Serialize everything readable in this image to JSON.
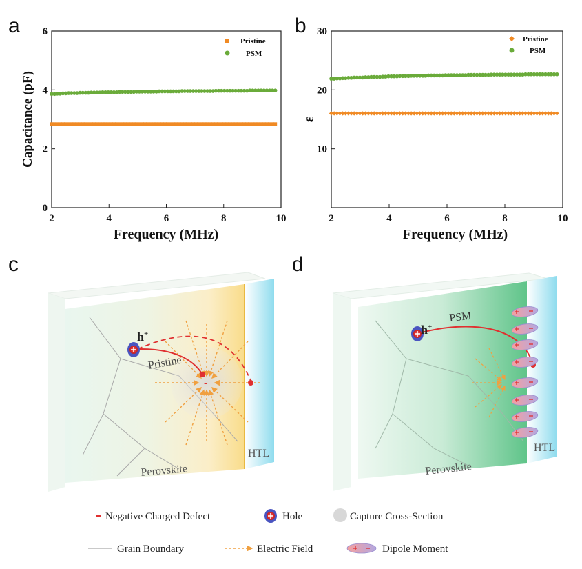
{
  "chart_data": [
    {
      "panel": "a",
      "type": "scatter",
      "xlabel": "Frequency (MHz)",
      "ylabel": "Capacitance (pF)",
      "xlim": [
        2,
        10
      ],
      "ylim": [
        0,
        6
      ],
      "xticks": [
        "2",
        "4",
        "6",
        "8",
        "10"
      ],
      "yticks": [
        "0",
        "2",
        "4",
        "6"
      ],
      "x": [
        2.0,
        2.2,
        2.4,
        2.6,
        2.8,
        3.0,
        3.2,
        3.4,
        3.6,
        3.8,
        4.0,
        4.2,
        4.4,
        4.6,
        4.8,
        5.0,
        5.2,
        5.4,
        5.6,
        5.8,
        6.0,
        6.2,
        6.4,
        6.6,
        6.8,
        7.0,
        7.2,
        7.4,
        7.6,
        7.8,
        8.0,
        8.2,
        8.4,
        8.6,
        8.8,
        9.0,
        9.2,
        9.4,
        9.6,
        9.8
      ],
      "legend_position": "top-right",
      "series": [
        {
          "name": "Pristine",
          "marker": "square",
          "color": "#f08a24",
          "values": [
            2.84,
            2.84,
            2.84,
            2.84,
            2.84,
            2.84,
            2.84,
            2.84,
            2.84,
            2.84,
            2.84,
            2.84,
            2.84,
            2.84,
            2.84,
            2.84,
            2.84,
            2.84,
            2.84,
            2.84,
            2.84,
            2.84,
            2.84,
            2.84,
            2.84,
            2.84,
            2.84,
            2.84,
            2.84,
            2.84,
            2.84,
            2.84,
            2.84,
            2.84,
            2.84,
            2.84,
            2.84,
            2.84,
            2.84,
            2.84
          ]
        },
        {
          "name": "PSM",
          "marker": "circle",
          "color": "#6aab3a",
          "values": [
            3.86,
            3.87,
            3.88,
            3.89,
            3.89,
            3.9,
            3.9,
            3.91,
            3.91,
            3.92,
            3.92,
            3.92,
            3.93,
            3.93,
            3.93,
            3.94,
            3.94,
            3.94,
            3.94,
            3.95,
            3.95,
            3.95,
            3.95,
            3.96,
            3.96,
            3.96,
            3.96,
            3.96,
            3.96,
            3.97,
            3.97,
            3.97,
            3.97,
            3.97,
            3.97,
            3.98,
            3.98,
            3.98,
            3.98,
            3.98
          ]
        }
      ]
    },
    {
      "panel": "b",
      "type": "scatter",
      "xlabel": "Frequency (MHz)",
      "ylabel": "ε",
      "xlim": [
        2,
        10
      ],
      "ylim": [
        0,
        30
      ],
      "xticks": [
        "2",
        "4",
        "6",
        "8",
        "10"
      ],
      "yticks": [
        "10",
        "20",
        "30"
      ],
      "x": [
        2.0,
        2.2,
        2.4,
        2.6,
        2.8,
        3.0,
        3.2,
        3.4,
        3.6,
        3.8,
        4.0,
        4.2,
        4.4,
        4.6,
        4.8,
        5.0,
        5.2,
        5.4,
        5.6,
        5.8,
        6.0,
        6.2,
        6.4,
        6.6,
        6.8,
        7.0,
        7.2,
        7.4,
        7.6,
        7.8,
        8.0,
        8.2,
        8.4,
        8.6,
        8.8,
        9.0,
        9.2,
        9.4,
        9.6,
        9.8
      ],
      "legend_position": "top-right",
      "series": [
        {
          "name": "Pristine",
          "marker": "diamond",
          "color": "#f08a24",
          "values": [
            16.0,
            16.0,
            16.0,
            16.0,
            16.0,
            16.0,
            16.0,
            16.0,
            16.0,
            16.0,
            16.0,
            16.0,
            16.0,
            16.0,
            16.0,
            16.0,
            16.0,
            16.0,
            16.0,
            16.0,
            16.0,
            16.0,
            16.0,
            16.0,
            16.0,
            16.0,
            16.0,
            16.0,
            16.0,
            16.0,
            16.0,
            16.0,
            16.0,
            16.0,
            16.0,
            16.0,
            16.0,
            16.0,
            16.0,
            16.0
          ]
        },
        {
          "name": "PSM",
          "marker": "circle",
          "color": "#6aab3a",
          "values": [
            21.9,
            21.95,
            22.0,
            22.05,
            22.1,
            22.1,
            22.15,
            22.2,
            22.2,
            22.25,
            22.3,
            22.3,
            22.35,
            22.35,
            22.4,
            22.4,
            22.4,
            22.45,
            22.45,
            22.45,
            22.5,
            22.5,
            22.5,
            22.5,
            22.55,
            22.55,
            22.55,
            22.55,
            22.6,
            22.6,
            22.6,
            22.6,
            22.6,
            22.6,
            22.65,
            22.65,
            22.65,
            22.65,
            22.65,
            22.65
          ]
        }
      ]
    }
  ],
  "panels": {
    "a": "a",
    "b": "b",
    "c": "c",
    "d": "d"
  },
  "diagram_c": {
    "hole_label": "h",
    "hole_sup": "+",
    "path_label": "Pristine",
    "layer_label": "Perovskite",
    "htl_label": "HTL",
    "defect_sign": "-"
  },
  "diagram_d": {
    "hole_label": "h",
    "hole_sup": "+",
    "path_label": "PSM",
    "layer_label": "Perovskite",
    "htl_label": "HTL"
  },
  "legend": {
    "negative_defect": "Negative Charged Defect",
    "hole": "Hole",
    "capture_cross_section": "Capture Cross-Section",
    "grain_boundary": "Grain Boundary",
    "electric_field": "Electric Field",
    "dipole_moment": "Dipole Moment"
  },
  "colors": {
    "pristine": "#f08a24",
    "psm": "#6aab3a",
    "htl": "#6fd2e6",
    "field": "#f0a040",
    "path": "#e03030"
  }
}
